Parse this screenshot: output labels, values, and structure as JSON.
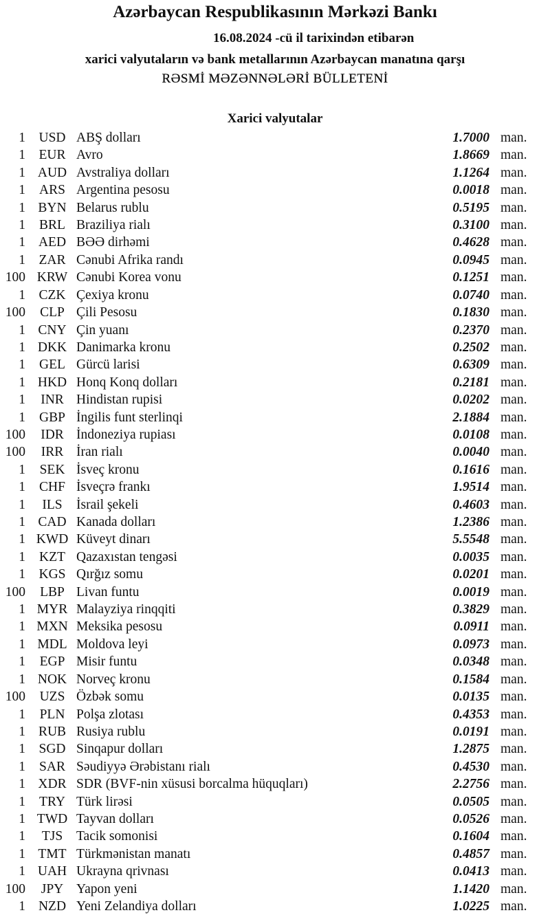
{
  "header": {
    "title": "Azərbaycan Respublikasının Mərkəzi Bankı",
    "date_line": "16.08.2024  -cü il tarixindən etibarən",
    "subtitle": "xarici valyutaların və bank metallarının Azərbaycan manatına qarşı",
    "bulletin": "RƏSMİ MƏZƏNNƏLƏRİ BÜLLETENİ",
    "section": "Xarici valyutalar"
  },
  "rates": [
    {
      "amount": "1",
      "code": "USD",
      "name": "ABŞ dolları",
      "value": "1.7000",
      "unit": "man."
    },
    {
      "amount": "1",
      "code": "EUR",
      "name": "Avro",
      "value": "1.8669",
      "unit": "man."
    },
    {
      "amount": "1",
      "code": "AUD",
      "name": "Avstraliya dolları",
      "value": "1.1264",
      "unit": "man."
    },
    {
      "amount": "1",
      "code": "ARS",
      "name": "Argentina pesosu",
      "value": "0.0018",
      "unit": "man."
    },
    {
      "amount": "1",
      "code": "BYN",
      "name": "Belarus rublu",
      "value": "0.5195",
      "unit": "man."
    },
    {
      "amount": "1",
      "code": "BRL",
      "name": "Braziliya rialı",
      "value": "0.3100",
      "unit": "man."
    },
    {
      "amount": "1",
      "code": "AED",
      "name": "BƏƏ dirhəmi",
      "value": "0.4628",
      "unit": "man."
    },
    {
      "amount": "1",
      "code": "ZAR",
      "name": "Cənubi Afrika randı",
      "value": "0.0945",
      "unit": "man."
    },
    {
      "amount": "100",
      "code": "KRW",
      "name": "Cənubi Korea vonu",
      "value": "0.1251",
      "unit": "man."
    },
    {
      "amount": "1",
      "code": "CZK",
      "name": "Çexiya kronu",
      "value": "0.0740",
      "unit": "man."
    },
    {
      "amount": "100",
      "code": "CLP",
      "name": "Çili Pesosu",
      "value": "0.1830",
      "unit": "man."
    },
    {
      "amount": "1",
      "code": "CNY",
      "name": "Çin yuanı",
      "value": "0.2370",
      "unit": "man."
    },
    {
      "amount": "1",
      "code": "DKK",
      "name": "Danimarka kronu",
      "value": "0.2502",
      "unit": "man."
    },
    {
      "amount": "1",
      "code": "GEL",
      "name": "Gürcü larisi",
      "value": "0.6309",
      "unit": "man."
    },
    {
      "amount": "1",
      "code": "HKD",
      "name": "Honq Konq dolları",
      "value": "0.2181",
      "unit": "man."
    },
    {
      "amount": "1",
      "code": "INR",
      "name": "Hindistan rupisi",
      "value": "0.0202",
      "unit": "man."
    },
    {
      "amount": "1",
      "code": "GBP",
      "name": "İngilis funt sterlinqi",
      "value": "2.1884",
      "unit": "man."
    },
    {
      "amount": "100",
      "code": "IDR",
      "name": "İndoneziya rupiası",
      "value": "0.0108",
      "unit": "man."
    },
    {
      "amount": "100",
      "code": "IRR",
      "name": "İran rialı",
      "value": "0.0040",
      "unit": "man."
    },
    {
      "amount": "1",
      "code": "SEK",
      "name": "İsveç kronu",
      "value": "0.1616",
      "unit": "man."
    },
    {
      "amount": "1",
      "code": "CHF",
      "name": "İsveçrə frankı",
      "value": "1.9514",
      "unit": "man."
    },
    {
      "amount": "1",
      "code": "ILS",
      "name": "İsrail şekeli",
      "value": "0.4603",
      "unit": "man."
    },
    {
      "amount": "1",
      "code": "CAD",
      "name": "Kanada dolları",
      "value": "1.2386",
      "unit": "man."
    },
    {
      "amount": "1",
      "code": "KWD",
      "name": "Küveyt dinarı",
      "value": "5.5548",
      "unit": "man."
    },
    {
      "amount": "1",
      "code": "KZT",
      "name": "Qazaxıstan tengəsi",
      "value": "0.0035",
      "unit": "man."
    },
    {
      "amount": "1",
      "code": "KGS",
      "name": "Qırğız somu",
      "value": "0.0201",
      "unit": "man."
    },
    {
      "amount": "100",
      "code": "LBP",
      "name": "Livan funtu",
      "value": "0.0019",
      "unit": "man."
    },
    {
      "amount": "1",
      "code": "MYR",
      "name": "Malayziya rinqqiti",
      "value": "0.3829",
      "unit": "man."
    },
    {
      "amount": "1",
      "code": "MXN",
      "name": "Meksika pesosu",
      "value": "0.0911",
      "unit": "man."
    },
    {
      "amount": "1",
      "code": "MDL",
      "name": "Moldova leyi",
      "value": "0.0973",
      "unit": "man."
    },
    {
      "amount": "1",
      "code": "EGP",
      "name": "Misir funtu",
      "value": "0.0348",
      "unit": "man."
    },
    {
      "amount": "1",
      "code": "NOK",
      "name": "Norveç kronu",
      "value": "0.1584",
      "unit": "man."
    },
    {
      "amount": "100",
      "code": "UZS",
      "name": "Özbək somu",
      "value": "0.0135",
      "unit": "man."
    },
    {
      "amount": "1",
      "code": "PLN",
      "name": "Polşa zlotası",
      "value": "0.4353",
      "unit": "man."
    },
    {
      "amount": "1",
      "code": "RUB",
      "name": "Rusiya rublu",
      "value": "0.0191",
      "unit": "man."
    },
    {
      "amount": "1",
      "code": "SGD",
      "name": "Sinqapur dolları",
      "value": "1.2875",
      "unit": "man."
    },
    {
      "amount": "1",
      "code": "SAR",
      "name": "Səudiyyə Ərəbistanı rialı",
      "value": "0.4530",
      "unit": "man."
    },
    {
      "amount": "1",
      "code": "XDR",
      "name": "SDR (BVF-nin xüsusi borcalma hüquqları)",
      "value": "2.2756",
      "unit": "man."
    },
    {
      "amount": "1",
      "code": "TRY",
      "name": "Türk lirəsi",
      "value": "0.0505",
      "unit": "man."
    },
    {
      "amount": "1",
      "code": "TWD",
      "name": "Tayvan dolları",
      "value": "0.0526",
      "unit": "man."
    },
    {
      "amount": "1",
      "code": "TJS",
      "name": "Tacik somonisi",
      "value": "0.1604",
      "unit": "man."
    },
    {
      "amount": "1",
      "code": "TMT",
      "name": "Türkmənistan manatı",
      "value": "0.4857",
      "unit": "man."
    },
    {
      "amount": "1",
      "code": "UAH",
      "name": "Ukrayna qrivnası",
      "value": "0.0413",
      "unit": "man."
    },
    {
      "amount": "100",
      "code": "JPY",
      "name": "Yapon yeni",
      "value": "1.1420",
      "unit": "man."
    },
    {
      "amount": "1",
      "code": "NZD",
      "name": "Yeni Zelandiya dolları",
      "value": "1.0225",
      "unit": "man."
    }
  ]
}
